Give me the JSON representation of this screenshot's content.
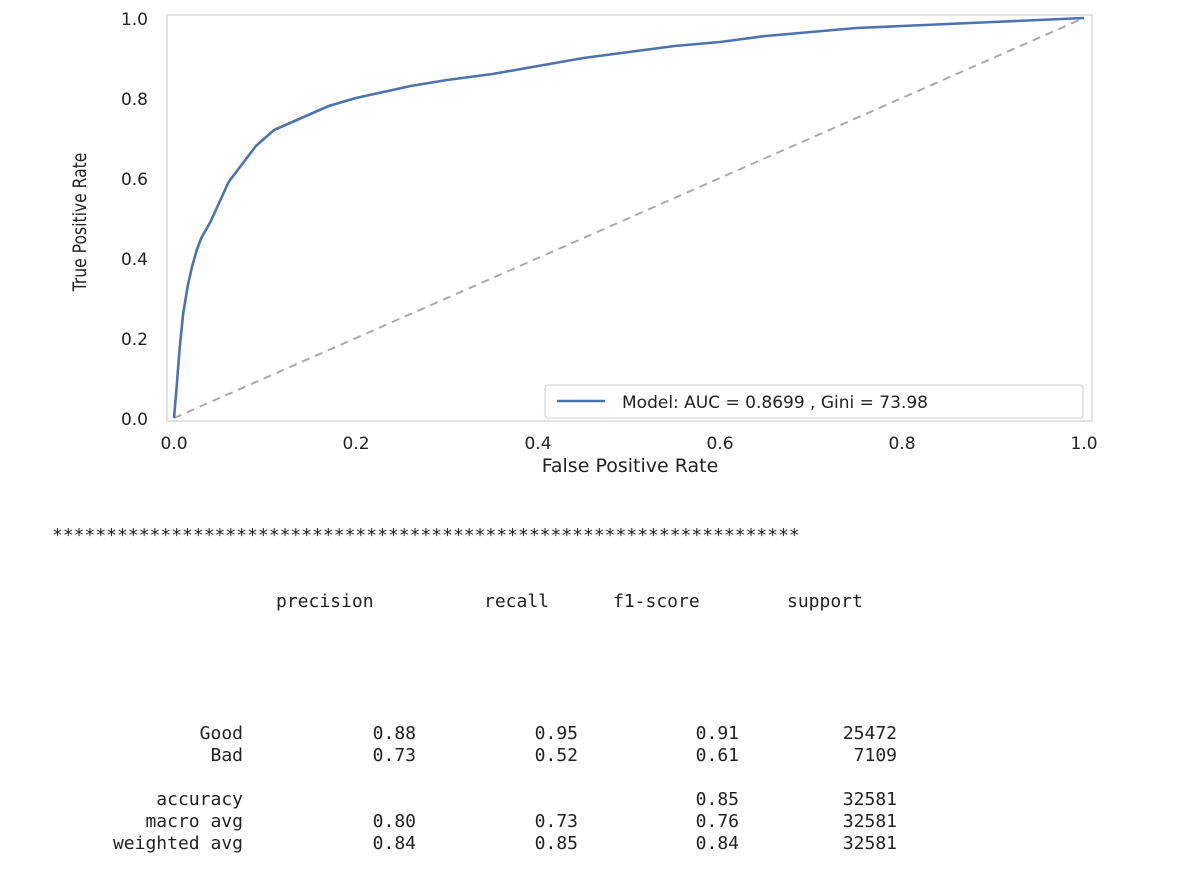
{
  "chart_data": {
    "type": "line",
    "xlabel": "False Positive Rate",
    "ylabel": "True Positive Rate",
    "xlim": [
      0.0,
      1.0
    ],
    "ylim": [
      0.0,
      1.0
    ],
    "xticks": [
      "0.0",
      "0.2",
      "0.4",
      "0.6",
      "0.8",
      "1.0"
    ],
    "yticks": [
      "0.0",
      "0.2",
      "0.4",
      "0.6",
      "0.8",
      "1.0"
    ],
    "grid": false,
    "legend_position": "bottom-right",
    "series": [
      {
        "name": "Model: AUC = 0.8699 , Gini = 73.98",
        "color": "#4c72b0",
        "style": "solid",
        "x": [
          0.0,
          0.003,
          0.006,
          0.01,
          0.015,
          0.02,
          0.025,
          0.03,
          0.04,
          0.05,
          0.06,
          0.07,
          0.08,
          0.09,
          0.1,
          0.11,
          0.12,
          0.13,
          0.15,
          0.17,
          0.2,
          0.23,
          0.26,
          0.3,
          0.35,
          0.4,
          0.45,
          0.5,
          0.55,
          0.6,
          0.65,
          0.7,
          0.75,
          0.8,
          0.85,
          0.9,
          0.95,
          1.0
        ],
        "y": [
          0.0,
          0.08,
          0.17,
          0.26,
          0.33,
          0.38,
          0.42,
          0.45,
          0.49,
          0.54,
          0.59,
          0.62,
          0.65,
          0.68,
          0.7,
          0.72,
          0.73,
          0.74,
          0.76,
          0.78,
          0.8,
          0.815,
          0.83,
          0.845,
          0.86,
          0.88,
          0.9,
          0.915,
          0.93,
          0.94,
          0.955,
          0.965,
          0.975,
          0.98,
          0.985,
          0.99,
          0.995,
          1.0
        ]
      },
      {
        "name": "",
        "color": "#aaaaaa",
        "style": "dashed",
        "x": [
          0.0,
          1.0
        ],
        "y": [
          0.0,
          1.0
        ]
      }
    ]
  },
  "report": {
    "separator": "*********************************************************************",
    "headers": [
      "precision",
      "recall",
      "f1-score",
      "support"
    ],
    "rows": [
      {
        "label": "Good",
        "precision": "0.88",
        "recall": "0.95",
        "f1": "0.91",
        "support": "25472"
      },
      {
        "label": "Bad",
        "precision": "0.73",
        "recall": "0.52",
        "f1": "0.61",
        "support": "7109"
      },
      {
        "label": "",
        "precision": "",
        "recall": "",
        "f1": "",
        "support": ""
      },
      {
        "label": "accuracy",
        "precision": "",
        "recall": "",
        "f1": "0.85",
        "support": "32581"
      },
      {
        "label": "macro avg",
        "precision": "0.80",
        "recall": "0.73",
        "f1": "0.76",
        "support": "32581"
      },
      {
        "label": "weighted avg",
        "precision": "0.84",
        "recall": "0.85",
        "f1": "0.84",
        "support": "32581"
      }
    ]
  }
}
